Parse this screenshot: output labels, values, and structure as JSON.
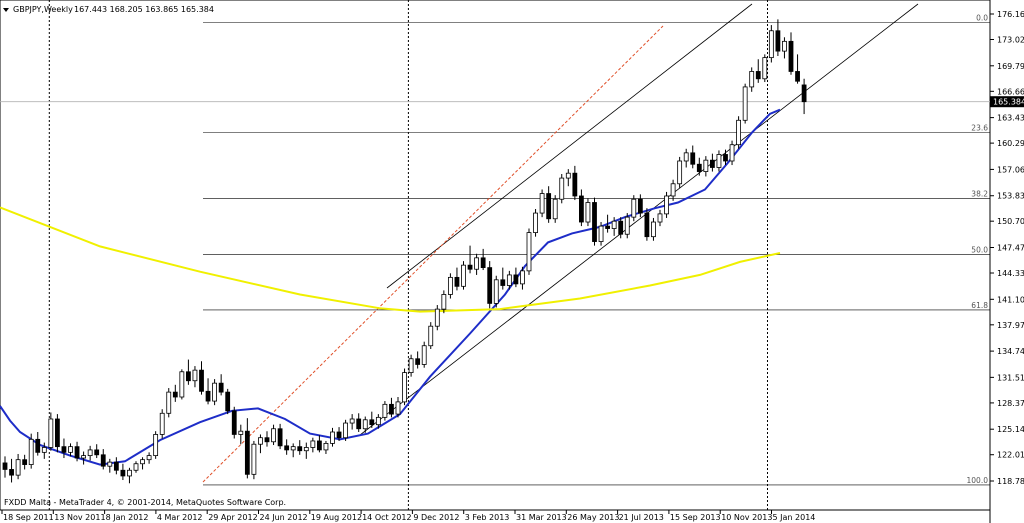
{
  "header": {
    "symbol": "GBPJPY,Weekly",
    "ohlc": "167.443 168.205 163.865 165.384"
  },
  "footer": {
    "copyright": "FXDD Malta - MetaTrader 4, © 2001-2014, MetaQuotes Software Corp."
  },
  "chart_data": {
    "type": "candlestick",
    "title": "GBPJPY,Weekly",
    "ylim": [
      117.0,
      177.5
    ],
    "y_ticks": [
      "176.160",
      "173.025",
      "169.795",
      "166.660",
      "163.430",
      "160.295",
      "157.065",
      "153.830",
      "150.705",
      "147.470",
      "144.335",
      "141.105",
      "137.970",
      "134.740",
      "131.515",
      "128.375",
      "125.145",
      "122.010",
      "118.780"
    ],
    "x_ticks": [
      "18 Sep 2011",
      "13 Nov 2011",
      "8 Jan 2012",
      "4 Mar 2012",
      "29 Apr 2012",
      "24 Jun 2012",
      "19 Aug 2012",
      "14 Oct 2012",
      "9 Dec 2012",
      "3 Feb 2013",
      "31 Mar 2013",
      "26 May 2013",
      "21 Jul 2013",
      "15 Sep 2013",
      "10 Nov 2013",
      "5 Jan 2014"
    ],
    "current_price": "165.384",
    "fibonacci": [
      {
        "label": "0.0",
        "price": 175.1
      },
      {
        "label": "23.6",
        "price": 161.6
      },
      {
        "label": "38.2",
        "price": 153.5
      },
      {
        "label": "50.0",
        "price": 146.6
      },
      {
        "label": "61.8",
        "price": 139.8
      },
      {
        "label": "100.0",
        "price": 118.3
      }
    ],
    "vertical_lines": [
      "13 Nov 2011",
      "9 Dec 2012",
      "5 Jan 2014"
    ],
    "series": [
      {
        "values": [
          [
            121.0,
            121.8,
            119.2,
            120.2
          ],
          [
            120.2,
            121.5,
            118.6,
            119.5
          ],
          [
            119.5,
            122.1,
            119.0,
            121.4
          ],
          [
            121.4,
            122.0,
            120.2,
            120.8
          ],
          [
            120.8,
            124.6,
            120.3,
            123.9
          ],
          [
            123.9,
            124.8,
            121.9,
            122.3
          ],
          [
            122.3,
            123.5,
            121.5,
            122.9
          ],
          [
            122.9,
            127.2,
            122.5,
            126.4
          ],
          [
            126.4,
            127.0,
            122.3,
            123.0
          ],
          [
            123.0,
            124.0,
            121.6,
            122.3
          ],
          [
            122.3,
            123.4,
            121.8,
            123.0
          ],
          [
            123.0,
            123.6,
            121.2,
            121.6
          ],
          [
            121.6,
            122.4,
            120.8,
            121.9
          ],
          [
            121.9,
            123.1,
            121.3,
            122.6
          ],
          [
            122.6,
            123.3,
            121.6,
            122.0
          ],
          [
            122.0,
            122.7,
            120.2,
            120.6
          ],
          [
            120.6,
            121.5,
            119.8,
            121.1
          ],
          [
            121.1,
            121.7,
            119.6,
            120.1
          ],
          [
            120.1,
            120.9,
            118.9,
            119.4
          ],
          [
            119.4,
            120.4,
            118.5,
            120.1
          ],
          [
            120.1,
            121.2,
            119.8,
            120.9
          ],
          [
            120.9,
            121.7,
            120.2,
            121.4
          ],
          [
            121.4,
            122.3,
            120.9,
            121.9
          ],
          [
            121.9,
            124.9,
            121.5,
            124.5
          ],
          [
            124.5,
            127.6,
            124.0,
            127.1
          ],
          [
            127.1,
            130.2,
            126.6,
            129.7
          ],
          [
            129.7,
            130.6,
            128.5,
            129.1
          ],
          [
            129.1,
            132.5,
            128.8,
            132.2
          ],
          [
            132.2,
            133.7,
            130.6,
            131.1
          ],
          [
            131.1,
            132.9,
            130.3,
            132.4
          ],
          [
            132.4,
            133.5,
            129.4,
            129.8
          ],
          [
            129.8,
            131.4,
            128.2,
            128.6
          ],
          [
            128.6,
            131.3,
            128.1,
            130.8
          ],
          [
            130.8,
            131.9,
            129.3,
            129.7
          ],
          [
            129.7,
            130.1,
            127.0,
            127.4
          ],
          [
            127.4,
            127.9,
            124.0,
            124.5
          ],
          [
            124.5,
            125.7,
            123.3,
            124.9
          ],
          [
            124.9,
            126.5,
            119.1,
            119.6
          ],
          [
            119.6,
            123.7,
            119.0,
            123.3
          ],
          [
            123.3,
            124.5,
            122.2,
            124.1
          ],
          [
            124.1,
            124.9,
            123.0,
            123.6
          ],
          [
            123.6,
            125.7,
            123.2,
            125.2
          ],
          [
            125.2,
            125.8,
            122.7,
            123.1
          ],
          [
            123.1,
            123.9,
            122.0,
            122.6
          ],
          [
            122.6,
            123.4,
            121.7,
            123.0
          ],
          [
            123.0,
            123.8,
            122.0,
            122.5
          ],
          [
            122.5,
            123.5,
            121.5,
            122.9
          ],
          [
            122.9,
            124.1,
            122.3,
            123.7
          ],
          [
            123.7,
            124.4,
            122.3,
            122.6
          ],
          [
            122.6,
            123.7,
            122.1,
            123.4
          ],
          [
            123.4,
            125.3,
            123.0,
            124.8
          ],
          [
            124.8,
            125.4,
            123.7,
            124.1
          ],
          [
            124.1,
            126.3,
            123.7,
            125.9
          ],
          [
            125.9,
            127.0,
            125.1,
            126.4
          ],
          [
            126.4,
            127.1,
            124.8,
            125.2
          ],
          [
            125.2,
            126.7,
            124.7,
            126.3
          ],
          [
            126.3,
            127.3,
            125.3,
            125.7
          ],
          [
            125.7,
            127.0,
            125.2,
            126.6
          ],
          [
            126.6,
            128.6,
            126.2,
            128.2
          ],
          [
            128.2,
            129.0,
            126.6,
            127.0
          ],
          [
            127.0,
            129.1,
            126.6,
            128.5
          ],
          [
            128.5,
            132.6,
            128.1,
            132.1
          ],
          [
            132.1,
            134.3,
            131.6,
            133.8
          ],
          [
            133.8,
            134.7,
            132.6,
            133.1
          ],
          [
            133.1,
            135.9,
            132.7,
            135.4
          ],
          [
            135.4,
            138.3,
            135.0,
            137.8
          ],
          [
            137.8,
            140.4,
            137.3,
            139.9
          ],
          [
            139.9,
            142.2,
            139.4,
            141.7
          ],
          [
            141.7,
            144.3,
            141.2,
            143.8
          ],
          [
            143.8,
            145.0,
            142.2,
            142.7
          ],
          [
            142.7,
            145.8,
            142.3,
            145.3
          ],
          [
            145.3,
            147.7,
            144.3,
            144.8
          ],
          [
            144.8,
            146.7,
            144.1,
            146.2
          ],
          [
            146.2,
            147.3,
            144.7,
            145.0
          ],
          [
            145.0,
            145.8,
            140.0,
            140.6
          ],
          [
            140.6,
            144.0,
            140.1,
            143.5
          ],
          [
            143.5,
            145.0,
            142.3,
            142.8
          ],
          [
            142.8,
            144.6,
            142.3,
            144.1
          ],
          [
            144.1,
            145.0,
            142.6,
            143.0
          ],
          [
            143.0,
            145.1,
            142.3,
            144.6
          ],
          [
            144.6,
            149.8,
            144.1,
            149.3
          ],
          [
            149.3,
            152.2,
            148.8,
            151.7
          ],
          [
            151.7,
            154.6,
            151.2,
            154.1
          ],
          [
            154.1,
            155.0,
            150.5,
            151.0
          ],
          [
            151.0,
            153.9,
            150.5,
            153.4
          ],
          [
            153.4,
            156.5,
            152.9,
            156.0
          ],
          [
            156.0,
            157.1,
            155.0,
            156.6
          ],
          [
            156.6,
            157.5,
            153.3,
            153.8
          ],
          [
            153.8,
            154.6,
            150.1,
            150.6
          ],
          [
            150.6,
            153.5,
            150.1,
            153.0
          ],
          [
            153.0,
            153.6,
            147.7,
            148.2
          ],
          [
            148.2,
            150.6,
            147.7,
            150.1
          ],
          [
            150.1,
            151.5,
            149.3,
            149.8
          ],
          [
            149.8,
            151.2,
            148.9,
            150.7
          ],
          [
            150.7,
            151.2,
            148.6,
            149.1
          ],
          [
            149.1,
            151.7,
            148.6,
            151.2
          ],
          [
            151.2,
            153.9,
            150.7,
            153.4
          ],
          [
            153.4,
            154.0,
            151.2,
            151.7
          ],
          [
            151.7,
            152.3,
            148.3,
            148.8
          ],
          [
            148.8,
            151.1,
            148.3,
            150.6
          ],
          [
            150.6,
            152.1,
            150.1,
            151.6
          ],
          [
            151.6,
            154.3,
            151.1,
            153.8
          ],
          [
            153.8,
            155.8,
            153.2,
            155.3
          ],
          [
            155.3,
            158.6,
            154.8,
            158.1
          ],
          [
            158.1,
            159.6,
            157.3,
            159.1
          ],
          [
            159.1,
            160.0,
            157.2,
            157.7
          ],
          [
            157.7,
            158.5,
            156.3,
            156.8
          ],
          [
            156.8,
            158.7,
            156.2,
            158.2
          ],
          [
            158.2,
            159.0,
            156.8,
            157.3
          ],
          [
            157.3,
            159.4,
            156.8,
            158.9
          ],
          [
            158.9,
            159.5,
            157.6,
            158.1
          ],
          [
            158.1,
            160.6,
            157.6,
            160.1
          ],
          [
            160.1,
            163.6,
            159.6,
            163.1
          ],
          [
            163.1,
            167.6,
            162.7,
            167.2
          ],
          [
            167.2,
            169.6,
            166.6,
            169.1
          ],
          [
            169.1,
            170.6,
            167.7,
            168.2
          ],
          [
            168.2,
            171.2,
            167.8,
            170.8
          ],
          [
            170.8,
            174.8,
            170.2,
            174.1
          ],
          [
            174.1,
            175.5,
            171.0,
            171.6
          ],
          [
            171.6,
            173.3,
            170.7,
            172.8
          ],
          [
            172.8,
            173.9,
            168.7,
            169.1
          ],
          [
            169.1,
            171.2,
            167.6,
            167.9
          ],
          [
            167.443,
            168.205,
            163.865,
            165.384
          ]
        ]
      },
      {
        "name": "",
        "color": "#1e2dc8",
        "values": [
          [
            0,
            128.0
          ],
          [
            10,
            126.2
          ],
          [
            20,
            124.8
          ],
          [
            40,
            123.2
          ],
          [
            70,
            121.9
          ],
          [
            100,
            120.8
          ],
          [
            125,
            121.2
          ],
          [
            160,
            123.8
          ],
          [
            200,
            126.0
          ],
          [
            232,
            127.4
          ],
          [
            258,
            127.7
          ],
          [
            285,
            126.4
          ],
          [
            310,
            124.6
          ],
          [
            340,
            123.9
          ],
          [
            368,
            124.6
          ],
          [
            400,
            127.0
          ],
          [
            430,
            131.6
          ],
          [
            470,
            136.9
          ],
          [
            505,
            141.7
          ],
          [
            525,
            145.2
          ],
          [
            548,
            148.1
          ],
          [
            572,
            149.2
          ],
          [
            600,
            150.0
          ],
          [
            625,
            151.2
          ],
          [
            655,
            152.3
          ],
          [
            678,
            153.0
          ],
          [
            705,
            154.6
          ],
          [
            728,
            157.9
          ],
          [
            752,
            161.6
          ],
          [
            770,
            163.9
          ],
          [
            780,
            164.4
          ]
        ]
      },
      {
        "name": "",
        "color": "#f0f000",
        "values": [
          [
            0,
            152.4
          ],
          [
            100,
            147.6
          ],
          [
            200,
            144.5
          ],
          [
            300,
            141.7
          ],
          [
            380,
            140.0
          ],
          [
            420,
            139.6
          ],
          [
            500,
            139.9
          ],
          [
            580,
            141.2
          ],
          [
            650,
            142.8
          ],
          [
            700,
            144.1
          ],
          [
            740,
            145.7
          ],
          [
            780,
            146.8
          ]
        ]
      }
    ]
  }
}
